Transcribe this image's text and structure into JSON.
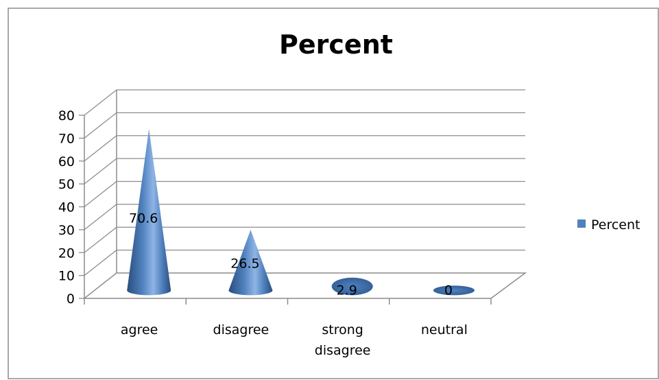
{
  "chart_data": {
    "type": "bar",
    "style": "3d-cone",
    "title": "Percent",
    "categories": [
      "agree",
      "disagree",
      "strong disagree",
      "neutral"
    ],
    "category_lines": [
      [
        "agree"
      ],
      [
        "disagree"
      ],
      [
        "strong",
        "disagree"
      ],
      [
        "neutral"
      ]
    ],
    "series": [
      {
        "name": "Percent",
        "values": [
          70.6,
          26.5,
          2.9,
          0
        ],
        "color": "#4F81BD"
      }
    ],
    "data_labels": [
      "70.6",
      "26.5",
      "2.9",
      "0"
    ],
    "ylim": [
      0,
      80
    ],
    "yticks": [
      0,
      10,
      20,
      30,
      40,
      50,
      60,
      70,
      80
    ],
    "ytick_labels": [
      "0",
      "10",
      "20",
      "30",
      "40",
      "50",
      "60",
      "70",
      "80"
    ],
    "grid": true,
    "legend": "right",
    "xlabel": "",
    "ylabel": ""
  }
}
